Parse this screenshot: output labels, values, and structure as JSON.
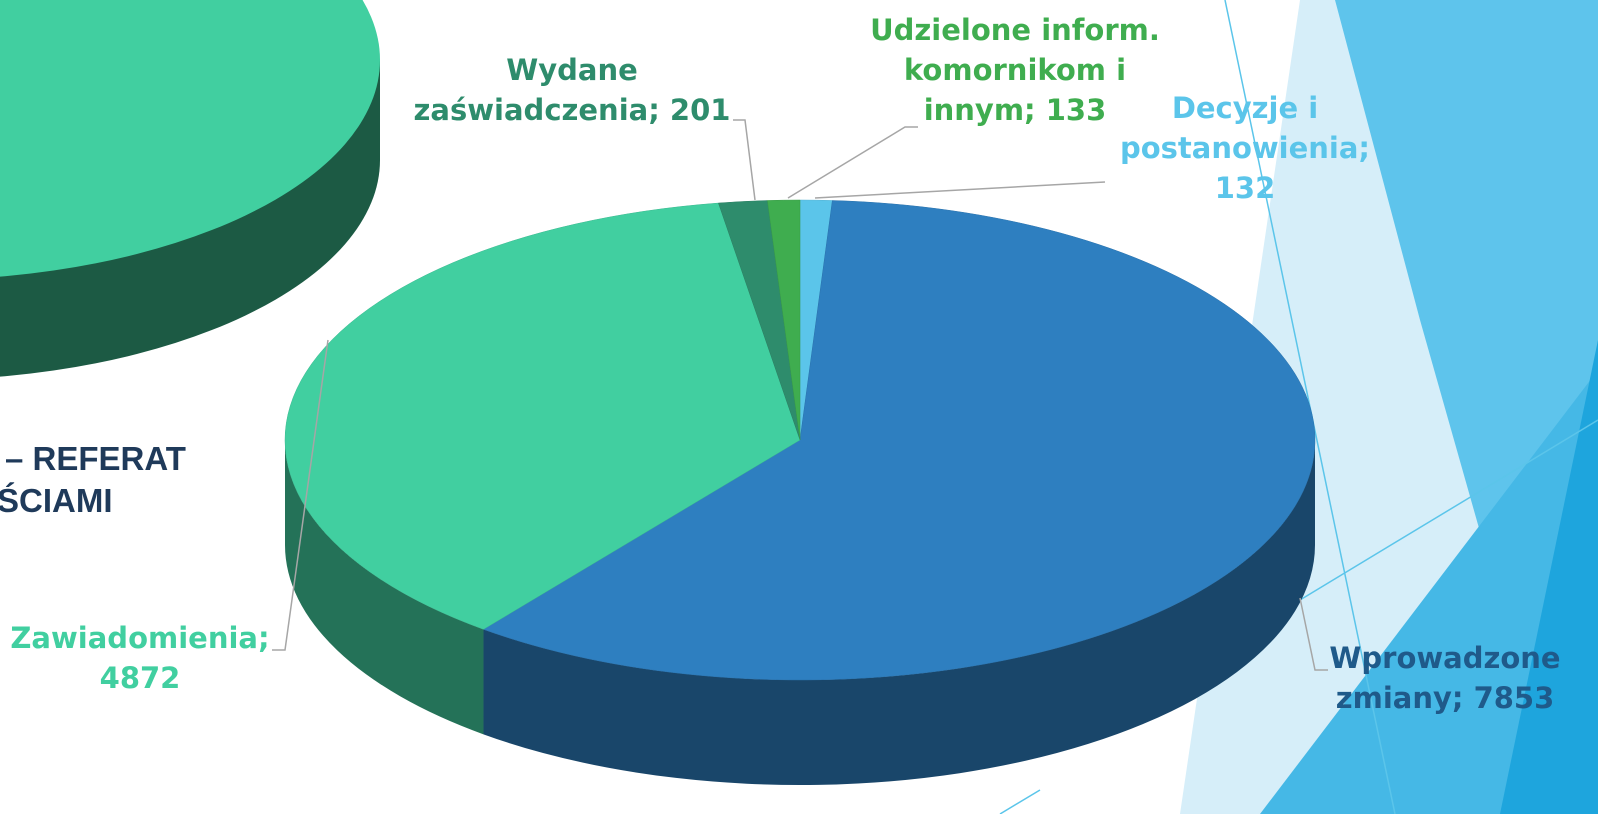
{
  "slide": {
    "title_fragments": [
      "– REFERAT",
      "ŚCIAMI"
    ]
  },
  "chart_data": {
    "type": "pie",
    "values": [
      132,
      7853,
      4872,
      201,
      133
    ],
    "value_labels": [
      "Decyzje i postanowienia; 132",
      "Wprowadzone zmiany; 7853",
      "Zawiadomienia; 4872",
      "Wydane zaświadczenia; 201",
      "Udzielone inform. komornikom i innym; 133"
    ],
    "colors": [
      "#5bc5ea",
      "#2e7fc0",
      "#41cfa0",
      "#2e8c6c",
      "#3fad4f"
    ],
    "label_colors": [
      "#5bc5ea",
      "#1f5a8a",
      "#41cfa0",
      "#2e8c6c",
      "#3fad4f"
    ]
  }
}
